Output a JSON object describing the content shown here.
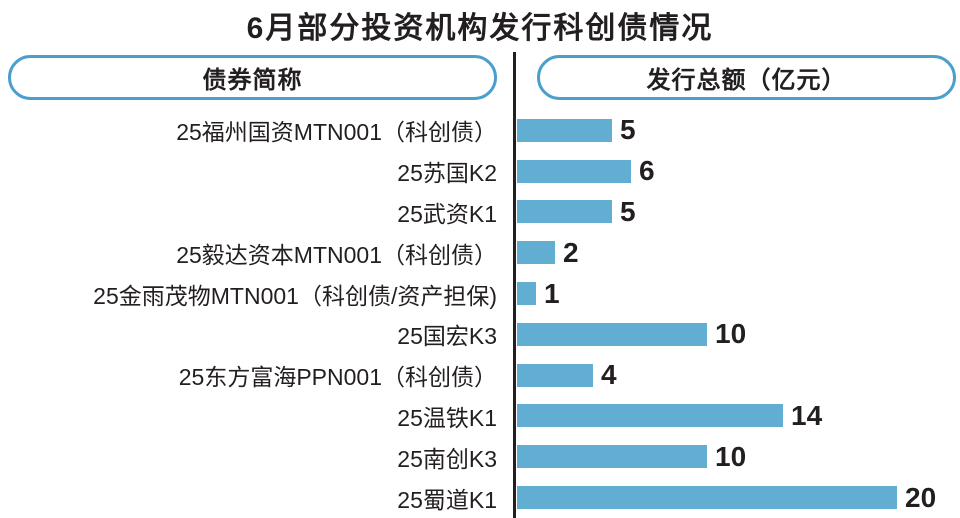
{
  "headers": {
    "bond_name": "债券简称",
    "issuance": "发行总额（亿元）"
  },
  "colors": {
    "bar": "#62AED3",
    "header_border": "#4B9FCC",
    "axis": "#231F20",
    "text": "#231F20",
    "background": "#FFFFFF"
  },
  "chart_data": {
    "type": "bar",
    "orientation": "horizontal",
    "title": "6月部分投资机构发行科创债情况",
    "xlabel": "发行总额（亿元）",
    "ylabel": "债券简称",
    "xlim": [
      0,
      20
    ],
    "grid": false,
    "legend": false,
    "categories": [
      "25福州国资MTN001（科创债）",
      "25苏国K2",
      "25武资K1",
      "25毅达资本MTN001（科创债）",
      "25金雨茂物MTN001（科创债/资产担保)",
      "25国宏K3",
      "25东方富海PPN001（科创债）",
      "25温铁K1",
      "25南创K3",
      "25蜀道K1"
    ],
    "values": [
      5,
      6,
      5,
      2,
      1,
      10,
      4,
      14,
      10,
      20
    ]
  }
}
